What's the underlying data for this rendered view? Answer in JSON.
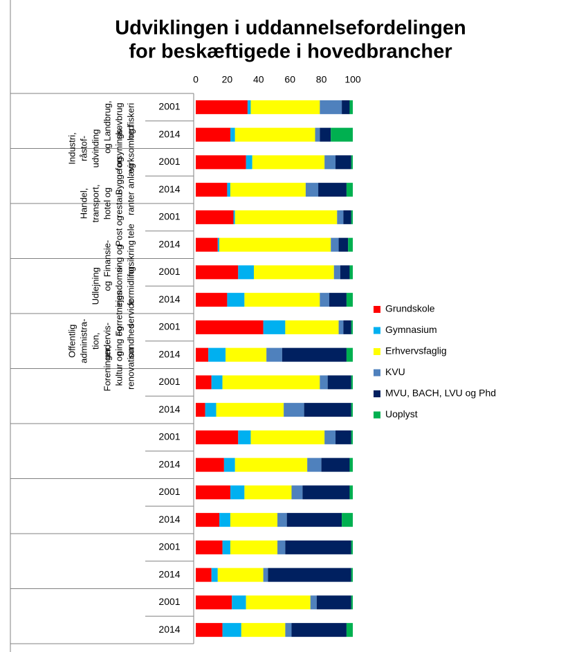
{
  "chart_data": {
    "type": "stacked_barh",
    "title": [
      "Udviklingen i uddannelsefordelingen",
      "for beskæftigede i hovedbrancher"
    ],
    "groups": [
      [
        "Landbrug,",
        "skovbrug",
        "og fiskeri"
      ],
      [
        "Industri,",
        "råstof-",
        "udvinding",
        "og",
        "forsynings-",
        "virksomhed"
      ],
      [
        "Bygge og",
        "anlæg"
      ],
      [
        "Handel,",
        "transport,",
        "hotel og",
        "restau-",
        "ranter"
      ],
      [
        "Post og",
        "tele"
      ],
      [
        "Finansie-",
        "ring og",
        "forsikring"
      ],
      [
        "Udlejning",
        "og",
        "ejendoms-",
        "formidling"
      ],
      [
        "Forretnings",
        "service"
      ],
      [
        "Offentlig",
        "administra-",
        "tion,",
        "undervis-",
        "ning og",
        "sundhed"
      ],
      [
        "Foreninger,",
        "kultur og",
        "renovation"
      ]
    ],
    "categories": [
      "2001",
      "2014",
      "2001",
      "2014",
      "2001",
      "2014",
      "2001",
      "2014",
      "2001",
      "2014",
      "2001",
      "2014",
      "2001",
      "2014",
      "2001",
      "2014",
      "2001",
      "2014",
      "2001",
      "2014"
    ],
    "series": [
      {
        "name": "Grundskole",
        "color": "#ff0000",
        "values": [
          33,
          22,
          32,
          20,
          24,
          14,
          27,
          20,
          43,
          8,
          10,
          6,
          27,
          18,
          22,
          15,
          17,
          10,
          23,
          17
        ]
      },
      {
        "name": "Gymnasium",
        "color": "#00b0f0",
        "values": [
          2,
          3,
          4,
          2,
          1,
          1,
          10,
          11,
          14,
          11,
          7,
          7,
          8,
          7,
          9,
          7,
          5,
          4,
          9,
          12
        ]
      },
      {
        "name": "Erhvervsfaglig",
        "color": "#ffff00",
        "values": [
          44,
          51,
          46,
          48,
          65,
          71,
          51,
          48,
          34,
          26,
          62,
          43,
          47,
          46,
          30,
          30,
          30,
          29,
          41,
          28
        ]
      },
      {
        "name": "KVU",
        "color": "#4f81bd",
        "values": [
          14,
          3,
          7,
          8,
          4,
          5,
          4,
          6,
          3,
          10,
          5,
          13,
          7,
          9,
          7,
          6,
          5,
          3,
          4,
          4
        ]
      },
      {
        "name": "MVU, BACH, LVU og Phd",
        "color": "#002060",
        "values": [
          5,
          7,
          10,
          18,
          5,
          6,
          6,
          11,
          5,
          41,
          15,
          30,
          10,
          18,
          30,
          35,
          42,
          53,
          22,
          35
        ]
      },
      {
        "name": "Uoplyst",
        "color": "#00b050",
        "values": [
          2,
          14,
          1,
          4,
          1,
          3,
          2,
          4,
          1,
          4,
          1,
          1,
          1,
          2,
          2,
          7,
          1,
          1,
          1,
          4
        ]
      }
    ],
    "xlim": [
      0,
      100
    ],
    "xticks": [
      0,
      20,
      40,
      60,
      80,
      100
    ],
    "legend": "right"
  }
}
